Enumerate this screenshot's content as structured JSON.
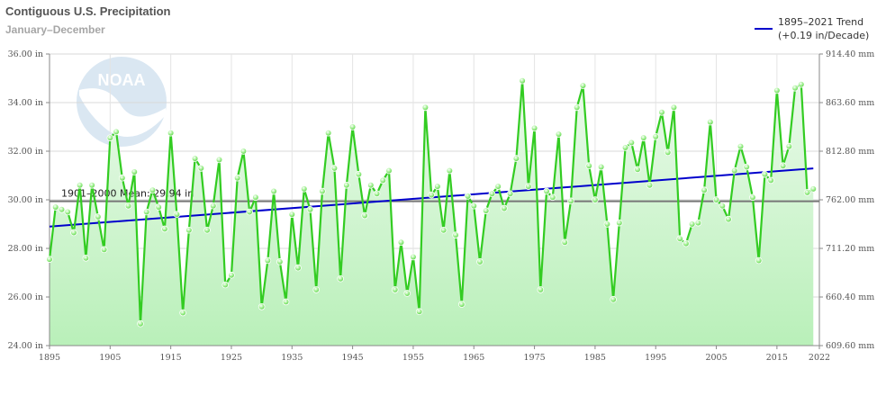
{
  "chart_data": {
    "type": "line",
    "title": "Contiguous U.S. Precipitation",
    "subtitle": "January–December",
    "ylim": [
      24,
      36
    ],
    "ylim_right_mm": [
      609.6,
      914.4
    ],
    "xlim": [
      1895,
      2022
    ],
    "y_ticks_left": [
      "24.00 in",
      "26.00 in",
      "28.00 in",
      "30.00 in",
      "32.00 in",
      "34.00 in",
      "36.00 in"
    ],
    "y_ticks_right": [
      "609.60 mm",
      "660.40 mm",
      "711.20 mm",
      "762.00 mm",
      "812.80 mm",
      "863.60 mm",
      "914.40 mm"
    ],
    "x_ticks": [
      "1895",
      "1905",
      "1915",
      "1925",
      "1935",
      "1945",
      "1955",
      "1965",
      "1975",
      "1985",
      "1995",
      "2005",
      "2015",
      "2022"
    ],
    "legend": {
      "label_line1": "1895–2021 Trend",
      "label_line2": "(+0.19 in/Decade)"
    },
    "mean": {
      "label": "1901–2000 Mean: 29.94 in",
      "value": 29.94
    },
    "trend": {
      "x": [
        1895,
        2021
      ],
      "y": [
        28.9,
        31.29
      ]
    },
    "colors": {
      "series": "#33cc22",
      "trend": "#0000cc",
      "mean": "#777777",
      "fill_top": "#eafaea",
      "fill_bottom": "#b9f0b9",
      "marker": "#99ee88"
    },
    "series": [
      {
        "x": [
          1895,
          1896,
          1897,
          1898,
          1899,
          1900,
          1901,
          1902,
          1903,
          1904,
          1905,
          1906,
          1907,
          1908,
          1909,
          1910,
          1911,
          1912,
          1913,
          1914,
          1915,
          1916,
          1917,
          1918,
          1919,
          1920,
          1921,
          1922,
          1923,
          1924,
          1925,
          1926,
          1927,
          1928,
          1929,
          1930,
          1931,
          1932,
          1933,
          1934,
          1935,
          1936,
          1937,
          1938,
          1939,
          1940,
          1941,
          1942,
          1943,
          1944,
          1945,
          1946,
          1947,
          1948,
          1949,
          1950,
          1951,
          1952,
          1953,
          1954,
          1955,
          1956,
          1957,
          1958,
          1959,
          1960,
          1961,
          1962,
          1963,
          1964,
          1965,
          1966,
          1967,
          1968,
          1969,
          1970,
          1971,
          1972,
          1973,
          1974,
          1975,
          1976,
          1977,
          1978,
          1979,
          1980,
          1981,
          1982,
          1983,
          1984,
          1985,
          1986,
          1987,
          1988,
          1989,
          1990,
          1991,
          1992,
          1993,
          1994,
          1995,
          1996,
          1997,
          1998,
          1999,
          2000,
          2001,
          2002,
          2003,
          2004,
          2005,
          2006,
          2007,
          2008,
          2009,
          2010,
          2011,
          2012,
          2013,
          2014,
          2015,
          2016,
          2017,
          2018,
          2019,
          2020,
          2021
        ],
        "values": [
          27.55,
          29.7,
          29.6,
          29.5,
          28.65,
          30.6,
          27.6,
          30.6,
          29.3,
          27.95,
          32.55,
          32.8,
          30.9,
          29.75,
          31.15,
          24.9,
          29.5,
          30.4,
          29.7,
          28.8,
          32.75,
          29.4,
          25.35,
          28.75,
          31.7,
          31.3,
          28.75,
          29.75,
          31.65,
          26.5,
          26.9,
          30.9,
          32.0,
          29.5,
          30.1,
          25.6,
          27.5,
          30.35,
          27.45,
          25.8,
          29.4,
          27.2,
          30.45,
          29.6,
          26.3,
          30.35,
          32.75,
          31.3,
          26.75,
          30.6,
          33.0,
          31.05,
          29.35,
          30.6,
          30.25,
          30.8,
          31.2,
          26.3,
          28.25,
          26.15,
          27.65,
          25.4,
          33.8,
          30.2,
          30.55,
          28.75,
          31.2,
          28.55,
          25.7,
          30.15,
          29.75,
          27.45,
          29.55,
          30.25,
          30.55,
          29.65,
          30.25,
          31.7,
          34.9,
          30.55,
          32.95,
          26.3,
          30.35,
          30.1,
          32.7,
          28.25,
          29.95,
          33.8,
          34.7,
          31.4,
          30.0,
          31.35,
          29.0,
          25.9,
          29.05,
          32.15,
          32.35,
          31.25,
          32.55,
          30.6,
          32.6,
          33.6,
          31.95,
          33.8,
          28.4,
          28.2,
          29.0,
          29.05,
          30.4,
          33.2,
          30.0,
          29.75,
          29.2,
          31.2,
          32.2,
          31.35,
          30.1,
          27.5,
          31.05,
          30.8,
          34.5,
          31.4,
          32.2,
          34.6,
          34.75,
          30.3,
          30.45
        ]
      }
    ]
  }
}
